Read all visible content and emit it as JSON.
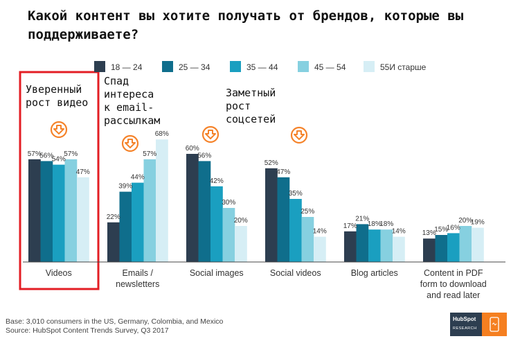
{
  "title": "Какой контент вы хотите получать от брендов, которые вы поддерживаете?",
  "annotations": {
    "videos": "Уверенный\nрост видео",
    "emails": "Спад\nинтереса\nк email-\nрассылкам",
    "social": "Заметный\nрост\nсоцсетей"
  },
  "footer": {
    "base": "Base: 3,010 consumers in the US, Germany, Colombia, and Mexico",
    "source": "Source: HubSpot Content Trends Survey, Q3 2017"
  },
  "logo": {
    "name": "HubSpot",
    "sub": "RESEARCH"
  },
  "colors": {
    "highlight": "#e31e24",
    "trend_icon": "#f5832a",
    "axis": "#444444"
  },
  "chart_data": {
    "type": "bar",
    "categories": [
      "Videos",
      "Emails /\nnewsletters",
      "Social images",
      "Social videos",
      "Blog articles",
      "Content in PDF\nform to download\nand read later"
    ],
    "series": [
      {
        "name": "18 — 24",
        "color": "#2d3e50",
        "values": [
          57,
          22,
          60,
          52,
          17,
          13
        ]
      },
      {
        "name": "25 — 34",
        "color": "#0f6e8c",
        "values": [
          56,
          39,
          56,
          47,
          21,
          15
        ]
      },
      {
        "name": "35 — 44",
        "color": "#1a9fc0",
        "values": [
          54,
          44,
          42,
          35,
          18,
          16
        ]
      },
      {
        "name": "45 — 54",
        "color": "#86d0e0",
        "values": [
          57,
          57,
          30,
          25,
          18,
          20
        ]
      },
      {
        "name": "55И старше",
        "color": "#d6eef5",
        "values": [
          47,
          68,
          20,
          14,
          14,
          19
        ]
      }
    ],
    "value_suffix": "%",
    "ylim": [
      0,
      70
    ],
    "legend": "top",
    "grid": false
  }
}
